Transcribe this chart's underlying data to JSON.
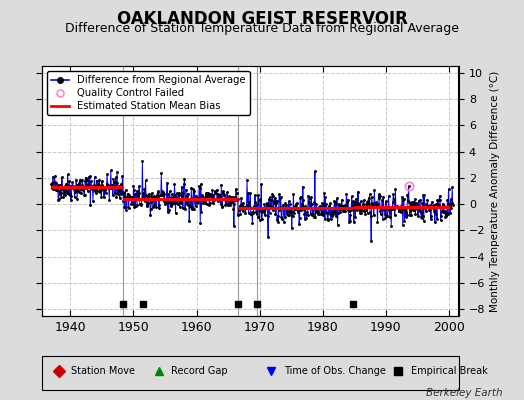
{
  "title": "OAKLANDON GEIST RESERVOIR",
  "subtitle": "Difference of Station Temperature Data from Regional Average",
  "ylabel_right": "Monthly Temperature Anomaly Difference (°C)",
  "xlim": [
    1935.5,
    2001.5
  ],
  "ylim": [
    -8.5,
    10.5
  ],
  "yticks": [
    -8,
    -6,
    -4,
    -2,
    0,
    2,
    4,
    6,
    8,
    10
  ],
  "xticks": [
    1940,
    1950,
    1960,
    1970,
    1980,
    1990,
    2000
  ],
  "background_color": "#dcdcdc",
  "plot_bg_color": "#ffffff",
  "grid_color": "#c8c8c8",
  "title_fontsize": 12,
  "subtitle_fontsize": 9,
  "watermark": "Berkeley Earth",
  "segment_bias": [
    {
      "x_start": 1937.0,
      "x_end": 1948.4,
      "bias": 1.3
    },
    {
      "x_start": 1948.4,
      "x_end": 1966.5,
      "bias": 0.4
    },
    {
      "x_start": 1966.5,
      "x_end": 1969.5,
      "bias": -0.3
    },
    {
      "x_start": 1969.5,
      "x_end": 1984.8,
      "bias": -0.28
    },
    {
      "x_start": 1984.8,
      "x_end": 2000.2,
      "bias": -0.22
    }
  ],
  "break_markers_x": [
    1948.4,
    1951.5,
    1966.5,
    1969.5,
    1984.8
  ],
  "vline_x": [
    1948.4,
    1966.5,
    1969.5
  ],
  "qc_failed_x": [
    1993.6
  ],
  "qc_failed_y": [
    1.35
  ],
  "seed": 42,
  "noise_std": 0.52,
  "n_spikes": 25,
  "spike_mult": 2.8,
  "clip_val": 3.5,
  "spike_1951_val": 3.25,
  "spike_1951_year": 1951.4
}
